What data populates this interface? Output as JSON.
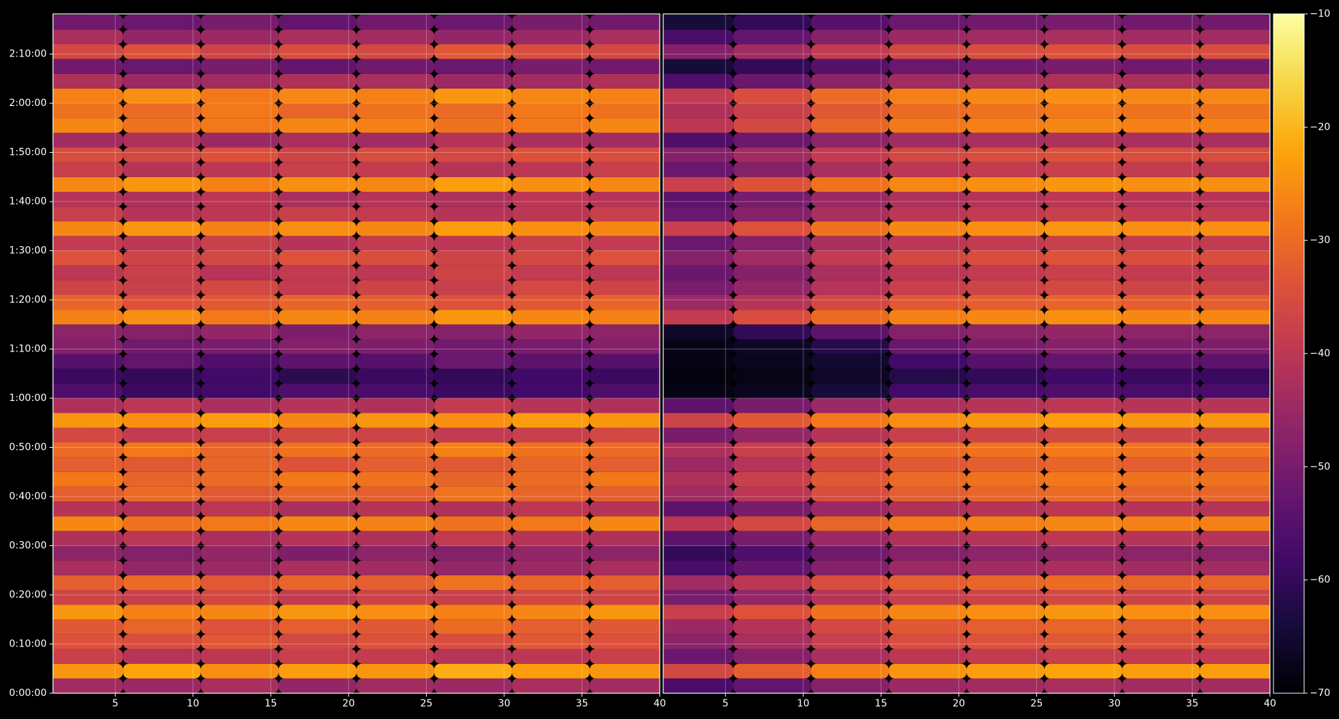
{
  "chart_data": {
    "type": "heatmap",
    "colormap": "inferno",
    "clim": [
      -70,
      -10
    ],
    "cticks": [
      {
        "value": -70,
        "label": "−70"
      },
      {
        "value": -60,
        "label": "−60"
      },
      {
        "value": -50,
        "label": "−50"
      },
      {
        "value": -40,
        "label": "−40"
      },
      {
        "value": -30,
        "label": "−30"
      },
      {
        "value": -20,
        "label": "−20"
      },
      {
        "value": -10,
        "label": "−10"
      }
    ],
    "ylim": [
      0,
      8290
    ],
    "yticks": [
      {
        "value": 0,
        "label": "0:00:00"
      },
      {
        "value": 600,
        "label": "0:10:00"
      },
      {
        "value": 1200,
        "label": "0:20:00"
      },
      {
        "value": 1800,
        "label": "0:30:00"
      },
      {
        "value": 2400,
        "label": "0:40:00"
      },
      {
        "value": 3000,
        "label": "0:50:00"
      },
      {
        "value": 3600,
        "label": "1:00:00"
      },
      {
        "value": 4200,
        "label": "1:10:00"
      },
      {
        "value": 4800,
        "label": "1:20:00"
      },
      {
        "value": 5400,
        "label": "1:30:00"
      },
      {
        "value": 6000,
        "label": "1:40:00"
      },
      {
        "value": 6600,
        "label": "1:50:00"
      },
      {
        "value": 7200,
        "label": "2:00:00"
      },
      {
        "value": 7800,
        "label": "2:10:00"
      }
    ],
    "grid": true,
    "y": [
      90,
      270,
      450,
      630,
      810,
      990,
      1170,
      1350,
      1530,
      1710,
      1890,
      2070,
      2250,
      2430,
      2610,
      2790,
      2970,
      3150,
      3330,
      3510,
      3690,
      3870,
      4050,
      4230,
      4410,
      4590,
      4770,
      4950,
      5130,
      5310,
      5490,
      5670,
      5850,
      6030,
      6210,
      6390,
      6570,
      6750,
      6930,
      7110,
      7290,
      7470,
      7650,
      7830,
      8010,
      8190
    ],
    "panels": [
      {
        "xlim": [
          1,
          40
        ],
        "xticks": [
          5,
          10,
          15,
          20,
          25,
          30,
          35,
          40
        ],
        "x": [
          3,
          8,
          13,
          18,
          23,
          28,
          33,
          38
        ],
        "values": [
          [
            -44,
            -45,
            -43,
            -46,
            -44,
            -45,
            -43,
            -44
          ],
          [
            -24,
            -22,
            -25,
            -23,
            -24,
            -21,
            -23,
            -24
          ],
          [
            -38,
            -41,
            -40,
            -38,
            -39,
            -41,
            -40,
            -38
          ],
          [
            -34,
            -35,
            -33,
            -36,
            -34,
            -35,
            -33,
            -34
          ],
          [
            -33,
            -31,
            -34,
            -32,
            -33,
            -30,
            -32,
            -33
          ],
          [
            -24,
            -27,
            -26,
            -24,
            -25,
            -27,
            -26,
            -24
          ],
          [
            -37,
            -38,
            -36,
            -39,
            -37,
            -38,
            -36,
            -37
          ],
          [
            -32,
            -30,
            -33,
            -31,
            -32,
            -29,
            -31,
            -32
          ],
          [
            -43,
            -46,
            -45,
            -43,
            -44,
            -46,
            -45,
            -43
          ],
          [
            -47,
            -48,
            -46,
            -49,
            -47,
            -48,
            -46,
            -47
          ],
          [
            -42,
            -40,
            -43,
            -41,
            -42,
            -39,
            -41,
            -42
          ],
          [
            -26,
            -29,
            -28,
            -26,
            -27,
            -29,
            -28,
            -26
          ],
          [
            -41,
            -42,
            -40,
            -43,
            -41,
            -42,
            -40,
            -41
          ],
          [
            -32,
            -30,
            -33,
            -31,
            -32,
            -29,
            -31,
            -32
          ],
          [
            -28,
            -31,
            -30,
            -28,
            -29,
            -31,
            -30,
            -28
          ],
          [
            -32,
            -33,
            -31,
            -34,
            -32,
            -33,
            -31,
            -32
          ],
          [
            -30,
            -28,
            -31,
            -29,
            -30,
            -27,
            -29,
            -30
          ],
          [
            -36,
            -39,
            -38,
            -36,
            -37,
            -39,
            -38,
            -36
          ],
          [
            -24,
            -25,
            -23,
            -26,
            -24,
            -25,
            -23,
            -24
          ],
          [
            -42,
            -40,
            -43,
            -41,
            -42,
            -39,
            -41,
            -42
          ],
          [
            -56,
            -59,
            -58,
            -56,
            -57,
            -59,
            -58,
            -56
          ],
          [
            -59,
            -60,
            -58,
            -61,
            -59,
            -60,
            -58,
            -59
          ],
          [
            -55,
            -53,
            -56,
            -54,
            -55,
            -52,
            -54,
            -55
          ],
          [
            -48,
            -51,
            -50,
            -48,
            -49,
            -51,
            -50,
            -48
          ],
          [
            -47,
            -48,
            -46,
            -49,
            -47,
            -48,
            -46,
            -47
          ],
          [
            -27,
            -25,
            -28,
            -26,
            -27,
            -24,
            -26,
            -27
          ],
          [
            -31,
            -34,
            -33,
            -31,
            -32,
            -34,
            -33,
            -31
          ],
          [
            -37,
            -38,
            -36,
            -39,
            -37,
            -38,
            -36,
            -37
          ],
          [
            -40,
            -38,
            -41,
            -39,
            -40,
            -37,
            -39,
            -40
          ],
          [
            -34,
            -37,
            -36,
            -34,
            -35,
            -37,
            -36,
            -34
          ],
          [
            -39,
            -40,
            -38,
            -41,
            -39,
            -40,
            -38,
            -39
          ],
          [
            -26,
            -24,
            -27,
            -25,
            -26,
            -23,
            -25,
            -26
          ],
          [
            -38,
            -41,
            -40,
            -38,
            -39,
            -41,
            -40,
            -38
          ],
          [
            -41,
            -42,
            -40,
            -43,
            -41,
            -42,
            -40,
            -41
          ],
          [
            -26,
            -24,
            -27,
            -25,
            -26,
            -23,
            -25,
            -26
          ],
          [
            -38,
            -41,
            -40,
            -38,
            -39,
            -41,
            -40,
            -38
          ],
          [
            -35,
            -36,
            -34,
            -37,
            -35,
            -36,
            -34,
            -35
          ],
          [
            -44,
            -42,
            -45,
            -43,
            -44,
            -41,
            -43,
            -44
          ],
          [
            -26,
            -29,
            -28,
            -26,
            -27,
            -29,
            -28,
            -26
          ],
          [
            -29,
            -30,
            -28,
            -31,
            -29,
            -30,
            -28,
            -29
          ],
          [
            -27,
            -25,
            -28,
            -26,
            -27,
            -24,
            -26,
            -27
          ],
          [
            -42,
            -45,
            -44,
            -42,
            -43,
            -45,
            -44,
            -42
          ],
          [
            -51,
            -52,
            -50,
            -53,
            -51,
            -52,
            -50,
            -51
          ],
          [
            -36,
            -34,
            -37,
            -35,
            -36,
            -33,
            -35,
            -36
          ],
          [
            -43,
            -46,
            -45,
            -43,
            -44,
            -46,
            -45,
            -43
          ],
          [
            -51,
            -52,
            -50,
            -53,
            -51,
            -52,
            -50,
            -51
          ]
        ]
      },
      {
        "xlim": [
          1,
          40
        ],
        "xticks": [
          5,
          10,
          15,
          20,
          25,
          30,
          35,
          40
        ],
        "x": [
          3,
          8,
          13,
          18,
          23,
          28,
          33,
          38
        ],
        "values": [
          [
            -57,
            -53,
            -48,
            -45,
            -44,
            -43,
            -44,
            -44
          ],
          [
            -36,
            -32,
            -27,
            -24,
            -23,
            -22,
            -23,
            -23
          ],
          [
            -52,
            -48,
            -43,
            -40,
            -39,
            -38,
            -39,
            -39
          ],
          [
            -47,
            -43,
            -38,
            -35,
            -34,
            -33,
            -34,
            -34
          ],
          [
            -45,
            -41,
            -36,
            -33,
            -32,
            -31,
            -32,
            -32
          ],
          [
            -38,
            -34,
            -29,
            -26,
            -25,
            -24,
            -25,
            -25
          ],
          [
            -50,
            -46,
            -41,
            -38,
            -37,
            -36,
            -37,
            -37
          ],
          [
            -44,
            -40,
            -35,
            -32,
            -31,
            -30,
            -31,
            -31
          ],
          [
            -57,
            -53,
            -48,
            -45,
            -44,
            -43,
            -44,
            -44
          ],
          [
            -60,
            -56,
            -51,
            -48,
            -47,
            -46,
            -47,
            -47
          ],
          [
            -54,
            -50,
            -45,
            -42,
            -41,
            -40,
            -41,
            -41
          ],
          [
            -40,
            -36,
            -31,
            -28,
            -27,
            -26,
            -27,
            -27
          ],
          [
            -54,
            -50,
            -45,
            -42,
            -41,
            -40,
            -41,
            -41
          ],
          [
            -44,
            -40,
            -35,
            -32,
            -31,
            -30,
            -31,
            -31
          ],
          [
            -42,
            -38,
            -33,
            -30,
            -29,
            -28,
            -29,
            -29
          ],
          [
            -45,
            -41,
            -36,
            -33,
            -32,
            -31,
            -32,
            -32
          ],
          [
            -42,
            -38,
            -33,
            -30,
            -29,
            -28,
            -29,
            -29
          ],
          [
            -50,
            -46,
            -41,
            -38,
            -37,
            -36,
            -37,
            -37
          ],
          [
            -37,
            -33,
            -28,
            -25,
            -24,
            -23,
            -24,
            -24
          ],
          [
            -54,
            -50,
            -45,
            -42,
            -41,
            -40,
            -41,
            -41
          ],
          [
            -68,
            -67,
            -64,
            -58,
            -57,
            -56,
            -57,
            -57
          ],
          [
            -69,
            -68,
            -66,
            -62,
            -60,
            -58,
            -59,
            -59
          ],
          [
            -68,
            -67,
            -65,
            -58,
            -55,
            -53,
            -54,
            -54
          ],
          [
            -68,
            -66,
            -62,
            -52,
            -49,
            -48,
            -49,
            -49
          ],
          [
            -66,
            -60,
            -54,
            -48,
            -47,
            -46,
            -47,
            -47
          ],
          [
            -39,
            -35,
            -30,
            -27,
            -26,
            -25,
            -26,
            -26
          ],
          [
            -45,
            -41,
            -36,
            -33,
            -32,
            -31,
            -32,
            -32
          ],
          [
            -50,
            -46,
            -41,
            -38,
            -37,
            -36,
            -37,
            -37
          ],
          [
            -52,
            -48,
            -43,
            -40,
            -39,
            -38,
            -39,
            -39
          ],
          [
            -48,
            -44,
            -39,
            -36,
            -35,
            -34,
            -35,
            -35
          ],
          [
            -52,
            -48,
            -43,
            -40,
            -39,
            -38,
            -39,
            -39
          ],
          [
            -38,
            -34,
            -29,
            -26,
            -25,
            -24,
            -25,
            -25
          ],
          [
            -52,
            -48,
            -43,
            -40,
            -39,
            -38,
            -39,
            -39
          ],
          [
            -54,
            -50,
            -45,
            -42,
            -41,
            -40,
            -41,
            -41
          ],
          [
            -38,
            -34,
            -29,
            -26,
            -25,
            -24,
            -25,
            -25
          ],
          [
            -52,
            -48,
            -43,
            -40,
            -39,
            -38,
            -39,
            -39
          ],
          [
            -48,
            -44,
            -39,
            -36,
            -35,
            -34,
            -35,
            -35
          ],
          [
            -56,
            -52,
            -47,
            -44,
            -43,
            -42,
            -43,
            -43
          ],
          [
            -40,
            -36,
            -31,
            -28,
            -27,
            -26,
            -27,
            -27
          ],
          [
            -42,
            -38,
            -33,
            -30,
            -29,
            -28,
            -29,
            -29
          ],
          [
            -39,
            -35,
            -30,
            -27,
            -26,
            -25,
            -26,
            -26
          ],
          [
            -56,
            -52,
            -47,
            -44,
            -43,
            -42,
            -43,
            -43
          ],
          [
            -64,
            -60,
            -55,
            -52,
            -51,
            -50,
            -51,
            -51
          ],
          [
            -48,
            -44,
            -39,
            -36,
            -35,
            -34,
            -35,
            -35
          ],
          [
            -57,
            -53,
            -48,
            -45,
            -44,
            -43,
            -44,
            -44
          ],
          [
            -64,
            -60,
            -55,
            -52,
            -51,
            -50,
            -51,
            -51
          ]
        ]
      }
    ]
  }
}
